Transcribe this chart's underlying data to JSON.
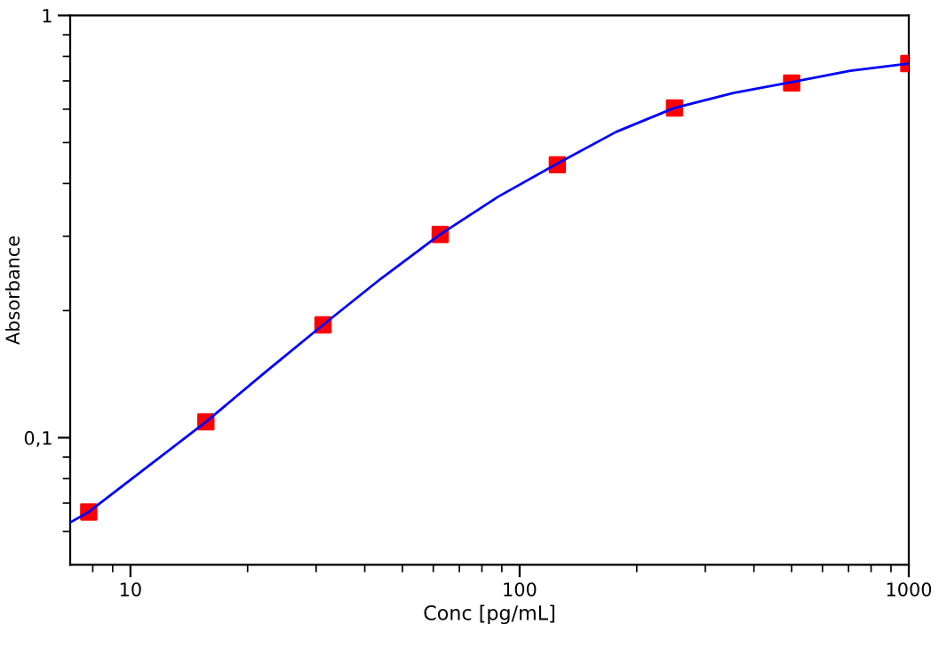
{
  "chart_data": {
    "type": "line",
    "xlabel": "Conc [pg/mL]",
    "ylabel": "Absorbance",
    "log": "xy",
    "xlim": [
      7,
      1000
    ],
    "ylim": [
      0.05,
      1
    ],
    "xticks": [
      {
        "value": 8,
        "label": null
      },
      {
        "value": 9,
        "label": null
      },
      10,
      {
        "value": 20,
        "label": null
      },
      {
        "value": 30,
        "label": null
      },
      {
        "value": 40,
        "label": null
      },
      {
        "value": 50,
        "label": null
      },
      {
        "value": 60,
        "label": null
      },
      {
        "value": 70,
        "label": null
      },
      {
        "value": 80,
        "label": null
      },
      {
        "value": 90,
        "label": null
      },
      100,
      {
        "value": 200,
        "label": null
      },
      {
        "value": 300,
        "label": null
      },
      {
        "value": 400,
        "label": null
      },
      {
        "value": 500,
        "label": null
      },
      {
        "value": 600,
        "label": null
      },
      {
        "value": 700,
        "label": null
      },
      {
        "value": 800,
        "label": null
      },
      {
        "value": 900,
        "label": null
      },
      1000
    ],
    "yticks": [
      {
        "value": 0.06,
        "label": null
      },
      {
        "value": 0.07,
        "label": null
      },
      {
        "value": 0.08,
        "label": null
      },
      {
        "value": 0.09,
        "label": null
      },
      {
        "value": 0.1,
        "label": "0,1"
      },
      {
        "value": 0.2,
        "label": null
      },
      {
        "value": 0.3,
        "label": null
      },
      {
        "value": 0.4,
        "label": null
      },
      {
        "value": 0.5,
        "label": null
      },
      {
        "value": 0.6,
        "label": null
      },
      {
        "value": 0.7,
        "label": null
      },
      {
        "value": 0.8,
        "label": null
      },
      {
        "value": 0.9,
        "label": null
      },
      1
    ],
    "grid": false,
    "legend": false,
    "series": [
      {
        "color": "#0000ff",
        "marker": "none",
        "line_style": "solid",
        "x": [
          7,
          7.8125,
          11,
          15.625,
          22,
          31.25,
          44,
          62.5,
          88,
          125,
          177,
          250,
          354,
          500,
          707,
          1000
        ],
        "values": [
          0.063,
          0.0667,
          0.085,
          0.109,
          0.142,
          0.185,
          0.238,
          0.303,
          0.372,
          0.446,
          0.53,
          0.604,
          0.655,
          0.695,
          0.74,
          0.769
        ]
      },
      {
        "type": "scatter",
        "color": "#ff0000",
        "marker": "square",
        "x": [
          7.8125,
          15.625,
          31.25,
          62.5,
          125,
          250,
          500,
          1000
        ],
        "values": [
          0.0667,
          0.109,
          0.185,
          0.303,
          0.443,
          0.604,
          0.692,
          0.769
        ]
      }
    ]
  }
}
